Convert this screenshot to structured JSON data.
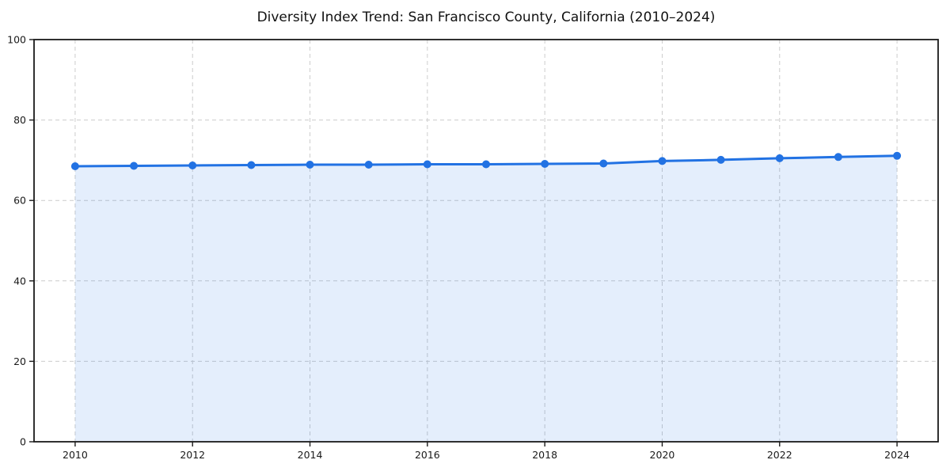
{
  "title": "Diversity Index Trend: San Francisco County, California (2010–2024)",
  "chart_data": {
    "type": "line",
    "title": "Diversity Index Trend: San Francisco County, California (2010–2024)",
    "xlabel": "",
    "ylabel": "",
    "x": [
      2010,
      2011,
      2012,
      2013,
      2014,
      2015,
      2016,
      2017,
      2018,
      2019,
      2020,
      2021,
      2022,
      2023,
      2024
    ],
    "series": [
      {
        "name": "Diversity Index",
        "values": [
          68.5,
          68.6,
          68.7,
          68.8,
          68.9,
          68.9,
          69.0,
          69.0,
          69.1,
          69.2,
          69.8,
          70.1,
          70.5,
          70.8,
          71.1
        ]
      }
    ],
    "xlim": [
      2009.3,
      2024.7
    ],
    "ylim": [
      0,
      100
    ],
    "x_ticks": [
      2010,
      2012,
      2014,
      2016,
      2018,
      2020,
      2022,
      2024
    ],
    "y_ticks": [
      0,
      20,
      40,
      60,
      80,
      100
    ],
    "grid": true,
    "grid_style": "dashed",
    "legend": "none",
    "area_fill_to_zero": true,
    "colors": {
      "line": "#2272e3",
      "marker": "#2272e3",
      "area_fill": "#2272e3",
      "area_fill_opacity": 0.12,
      "grid": "#cccccc",
      "border": "#1a1a1a",
      "text": "#1a1a1a",
      "background": "#ffffff"
    }
  }
}
